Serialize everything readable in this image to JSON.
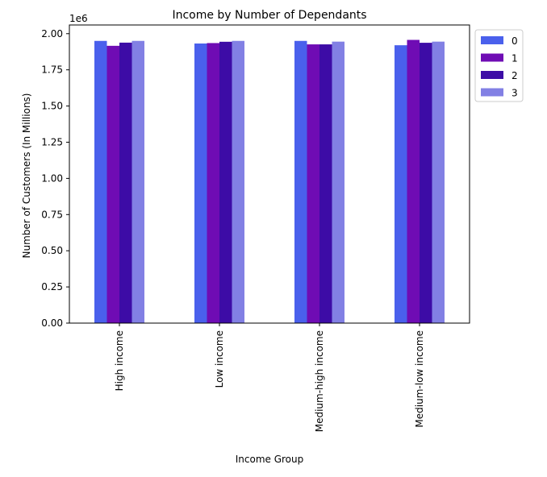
{
  "chart_data": {
    "type": "bar",
    "title": "Income by Number of Dependants",
    "xlabel": "Income Group",
    "ylabel": "Number of Customers (In Millions)",
    "y_offset_label": "1e6",
    "categories": [
      "High income",
      "Low income",
      "Medium-high income",
      "Medium-low income"
    ],
    "series": [
      {
        "name": "0",
        "color": "#4a60ec",
        "values": [
          1950000,
          1932000,
          1950000,
          1920000
        ]
      },
      {
        "name": "1",
        "color": "#6f0cb4",
        "values": [
          1916000,
          1935000,
          1926000,
          1957000
        ]
      },
      {
        "name": "2",
        "color": "#3d0ca6",
        "values": [
          1938000,
          1944000,
          1926000,
          1937000
        ]
      },
      {
        "name": "3",
        "color": "#8280e4",
        "values": [
          1950000,
          1950000,
          1945000,
          1945000
        ]
      }
    ],
    "ylim": [
      0,
      2060000
    ],
    "yticks": [
      0,
      250000,
      500000,
      750000,
      1000000,
      1250000,
      1500000,
      1750000,
      2000000
    ],
    "ytick_labels": [
      "0.00",
      "0.25",
      "0.50",
      "0.75",
      "1.00",
      "1.25",
      "1.50",
      "1.75",
      "2.00"
    ],
    "grid": false,
    "legend_position": "outside-top-right"
  }
}
